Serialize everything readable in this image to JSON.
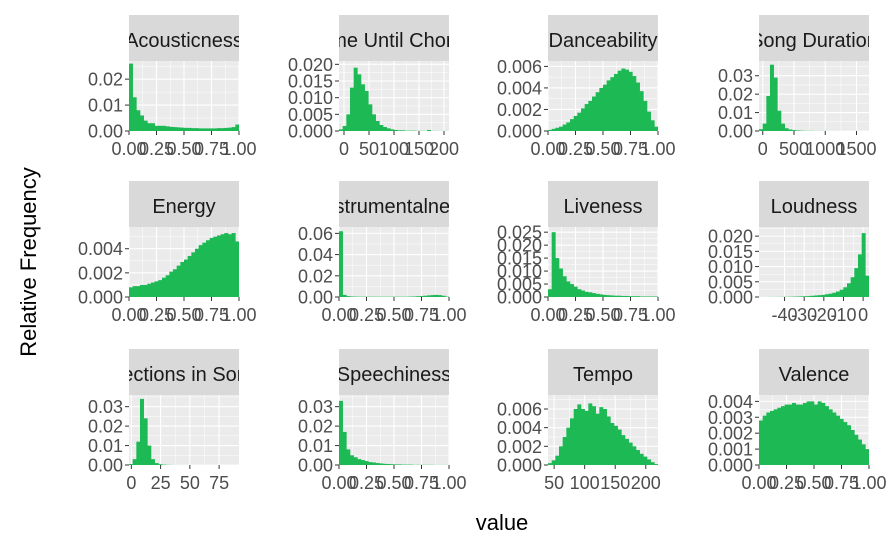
{
  "figure": {
    "ylabel": "Relative Frequency",
    "xlabel": "value",
    "bar_color": "#1DB954",
    "panel_bg": "#EBEBEB",
    "strip_bg": "#D9D9D9",
    "grid_color": "#FFFFFF",
    "text_color": "#4D4D4D"
  },
  "chart_data": [
    {
      "type": "bar",
      "title": "Acousticness",
      "xlim": [
        0,
        1
      ],
      "ylim": [
        0,
        0.027
      ],
      "xticks": [
        0.0,
        0.25,
        0.5,
        0.75,
        1.0
      ],
      "xtick_labels": [
        "0.00",
        "0.25",
        "0.50",
        "0.75",
        "1.00"
      ],
      "yticks": [
        0,
        0.01,
        0.02
      ],
      "ytick_labels": [
        "0.00",
        "0.01",
        "0.02"
      ],
      "values": [
        0.026,
        0.013,
        0.008,
        0.006,
        0.004,
        0.003,
        0.003,
        0.002,
        0.002,
        0.002,
        0.0018,
        0.0016,
        0.0015,
        0.0014,
        0.0013,
        0.0012,
        0.0012,
        0.0011,
        0.0011,
        0.001,
        0.001,
        0.001,
        0.001,
        0.001,
        0.0011,
        0.0011,
        0.0012,
        0.0013,
        0.0015,
        0.0025
      ]
    },
    {
      "type": "bar",
      "title": "Time Until Chorus",
      "xlim": [
        -10,
        210
      ],
      "ylim": [
        0,
        0.021
      ],
      "xticks": [
        0,
        50,
        100,
        150,
        200
      ],
      "xtick_labels": [
        "0",
        "50",
        "100",
        "150",
        "200"
      ],
      "yticks": [
        0,
        0.005,
        0.01,
        0.015,
        0.02
      ],
      "ytick_labels": [
        "0.000",
        "0.005",
        "0.010",
        "0.015",
        "0.020"
      ],
      "values": [
        0.0005,
        0.0015,
        0.005,
        0.013,
        0.019,
        0.017,
        0.014,
        0.012,
        0.008,
        0.005,
        0.003,
        0.0018,
        0.0012,
        0.0008,
        0.0005,
        0.0003,
        0.0002,
        0.0002,
        0.0001,
        0.0001,
        0.0001,
        5e-05,
        5e-05,
        5e-05,
        0.0003,
        5e-05,
        3e-05,
        3e-05,
        2e-05,
        2e-05
      ]
    },
    {
      "type": "bar",
      "title": "Danceability",
      "xlim": [
        0,
        1
      ],
      "ylim": [
        0,
        0.0065
      ],
      "xticks": [
        0.0,
        0.25,
        0.5,
        0.75,
        1.0
      ],
      "xtick_labels": [
        "0.00",
        "0.25",
        "0.50",
        "0.75",
        "1.00"
      ],
      "yticks": [
        0,
        0.002,
        0.004,
        0.006
      ],
      "ytick_labels": [
        "0.000",
        "0.002",
        "0.004",
        "0.006"
      ],
      "values": [
        0.0001,
        0.0002,
        0.0003,
        0.0004,
        0.0006,
        0.0008,
        0.0011,
        0.0014,
        0.0017,
        0.0021,
        0.0025,
        0.0028,
        0.0032,
        0.0036,
        0.004,
        0.0043,
        0.0047,
        0.005,
        0.0053,
        0.0056,
        0.0058,
        0.0057,
        0.0055,
        0.0051,
        0.0045,
        0.0037,
        0.0028,
        0.0018,
        0.001,
        0.0004
      ]
    },
    {
      "type": "bar",
      "title": "Song Duration",
      "xlim": [
        -60,
        1700
      ],
      "ylim": [
        0,
        0.038
      ],
      "xticks": [
        0,
        500,
        1000,
        1500
      ],
      "xtick_labels": [
        "0",
        "500",
        "1000",
        "1500"
      ],
      "yticks": [
        0,
        0.01,
        0.02,
        0.03
      ],
      "ytick_labels": [
        "0.00",
        "0.01",
        "0.02",
        "0.03"
      ],
      "values": [
        0.001,
        0.004,
        0.019,
        0.036,
        0.029,
        0.011,
        0.004,
        0.0015,
        0.0008,
        0.0005,
        0.0003,
        0.0002,
        0.0001,
        0.0001,
        0.0001,
        5e-05,
        5e-05,
        5e-05,
        3e-05,
        3e-05,
        2e-05,
        2e-05,
        2e-05,
        1e-05,
        1e-05,
        1e-05,
        1e-05,
        1e-05,
        1e-05,
        1e-05
      ]
    },
    {
      "type": "bar",
      "title": "Energy",
      "xlim": [
        0,
        1
      ],
      "ylim": [
        0,
        0.0058
      ],
      "xticks": [
        0.0,
        0.25,
        0.5,
        0.75,
        1.0
      ],
      "xtick_labels": [
        "0.00",
        "0.25",
        "0.50",
        "0.75",
        "1.00"
      ],
      "yticks": [
        0,
        0.002,
        0.004
      ],
      "ytick_labels": [
        "0.000",
        "0.002",
        "0.004"
      ],
      "values": [
        0.0008,
        0.0009,
        0.0009,
        0.001,
        0.001,
        0.0011,
        0.0012,
        0.0013,
        0.0014,
        0.0016,
        0.0018,
        0.0021,
        0.0023,
        0.0026,
        0.0029,
        0.0031,
        0.0034,
        0.0037,
        0.004,
        0.0043,
        0.0045,
        0.0047,
        0.0049,
        0.005,
        0.0051,
        0.0052,
        0.0053,
        0.0052,
        0.0053,
        0.0046
      ]
    },
    {
      "type": "bar",
      "title": "Instrumentalness",
      "xlim": [
        0,
        1
      ],
      "ylim": [
        0,
        0.066
      ],
      "xticks": [
        0.0,
        0.25,
        0.5,
        0.75,
        1.0
      ],
      "xtick_labels": [
        "0.00",
        "0.25",
        "0.50",
        "0.75",
        "1.00"
      ],
      "yticks": [
        0,
        0.02,
        0.04,
        0.06
      ],
      "ytick_labels": [
        "0.00",
        "0.02",
        "0.04",
        "0.06"
      ],
      "values": [
        0.062,
        0.002,
        0.0008,
        0.0005,
        0.0004,
        0.0003,
        0.0003,
        0.0003,
        0.0003,
        0.0003,
        0.0003,
        0.0003,
        0.0003,
        0.0003,
        0.0003,
        0.0003,
        0.0003,
        0.0003,
        0.0003,
        0.0004,
        0.0005,
        0.0007,
        0.0009,
        0.0012,
        0.0015,
        0.0018,
        0.002,
        0.0018,
        0.0012,
        0.0004
      ]
    },
    {
      "type": "bar",
      "title": "Liveness",
      "xlim": [
        0,
        1
      ],
      "ylim": [
        0,
        0.027
      ],
      "xticks": [
        0.0,
        0.25,
        0.5,
        0.75,
        1.0
      ],
      "xtick_labels": [
        "0.00",
        "0.25",
        "0.50",
        "0.75",
        "1.00"
      ],
      "yticks": [
        0,
        0.005,
        0.01,
        0.015,
        0.02,
        0.025
      ],
      "ytick_labels": [
        "0.000",
        "0.005",
        "0.010",
        "0.015",
        "0.020",
        "0.025"
      ],
      "values": [
        0.003,
        0.025,
        0.015,
        0.011,
        0.008,
        0.006,
        0.005,
        0.004,
        0.003,
        0.0025,
        0.002,
        0.0018,
        0.0015,
        0.0012,
        0.001,
        0.0008,
        0.0007,
        0.0006,
        0.0005,
        0.0005,
        0.0004,
        0.0004,
        0.0003,
        0.0003,
        0.0003,
        0.0002,
        0.0002,
        0.0002,
        0.0002,
        0.0002
      ]
    },
    {
      "type": "bar",
      "title": "Loudness",
      "xlim": [
        -53,
        3
      ],
      "ylim": [
        0,
        0.023
      ],
      "xticks": [
        -40,
        -30,
        -20,
        -10,
        0
      ],
      "xtick_labels": [
        "-40",
        "-30",
        "-20",
        "-10",
        "0"
      ],
      "yticks": [
        0,
        0.005,
        0.01,
        0.015,
        0.02
      ],
      "ytick_labels": [
        "0.000",
        "0.005",
        "0.010",
        "0.015",
        "0.020"
      ],
      "values": [
        2e-05,
        2e-05,
        3e-05,
        3e-05,
        4e-05,
        5e-05,
        6e-05,
        8e-05,
        0.0001,
        0.00012,
        0.00015,
        0.0002,
        0.00025,
        0.0003,
        0.0004,
        0.0005,
        0.0006,
        0.0007,
        0.0009,
        0.0011,
        0.0014,
        0.0018,
        0.0024,
        0.0032,
        0.0045,
        0.0065,
        0.0095,
        0.014,
        0.021,
        0.007
      ]
    },
    {
      "type": "bar",
      "title": "Sections in Song",
      "xlim": [
        -2,
        92
      ],
      "ylim": [
        0,
        0.036
      ],
      "xticks": [
        0,
        25,
        50,
        75
      ],
      "xtick_labels": [
        "0",
        "25",
        "50",
        "75"
      ],
      "yticks": [
        0,
        0.01,
        0.02,
        0.03
      ],
      "ytick_labels": [
        "0.00",
        "0.01",
        "0.02",
        "0.03"
      ],
      "values": [
        0.0005,
        0.003,
        0.012,
        0.034,
        0.024,
        0.01,
        0.003,
        0.001,
        0.0004,
        0.0002,
        0.0001,
        5e-05,
        4e-05,
        3e-05,
        2e-05,
        2e-05,
        1e-05,
        1e-05,
        1e-05,
        1e-05,
        1e-05,
        1e-05,
        1e-05,
        1e-05,
        1e-05,
        1e-05,
        1e-05,
        1e-05,
        1e-05,
        1e-05
      ]
    },
    {
      "type": "bar",
      "title": "Speechiness",
      "xlim": [
        0,
        1
      ],
      "ylim": [
        0,
        0.036
      ],
      "xticks": [
        0.0,
        0.25,
        0.5,
        0.75,
        1.0
      ],
      "xtick_labels": [
        "0.00",
        "0.25",
        "0.50",
        "0.75",
        "1.00"
      ],
      "yticks": [
        0,
        0.01,
        0.02,
        0.03
      ],
      "ytick_labels": [
        "0.00",
        "0.01",
        "0.02",
        "0.03"
      ],
      "values": [
        0.033,
        0.017,
        0.008,
        0.005,
        0.004,
        0.003,
        0.0025,
        0.002,
        0.0015,
        0.0013,
        0.001,
        0.0008,
        0.0006,
        0.0005,
        0.0004,
        0.0003,
        0.0003,
        0.0002,
        0.0002,
        0.0002,
        0.0001,
        0.0001,
        0.0001,
        0.0001,
        0.0001,
        0.0001,
        5e-05,
        5e-05,
        5e-05,
        5e-05
      ]
    },
    {
      "type": "bar",
      "title": "Tempo",
      "xlim": [
        40,
        220
      ],
      "ylim": [
        0,
        0.0075
      ],
      "xticks": [
        50,
        100,
        150,
        200
      ],
      "xtick_labels": [
        "50",
        "100",
        "150",
        "200"
      ],
      "yticks": [
        0,
        0.002,
        0.004,
        0.006
      ],
      "ytick_labels": [
        "0.000",
        "0.002",
        "0.004",
        "0.006"
      ],
      "values": [
        0.0002,
        0.0005,
        0.001,
        0.002,
        0.003,
        0.004,
        0.005,
        0.006,
        0.0065,
        0.006,
        0.0058,
        0.0066,
        0.0063,
        0.0055,
        0.0062,
        0.006,
        0.0052,
        0.0045,
        0.0042,
        0.0038,
        0.0032,
        0.0028,
        0.0024,
        0.002,
        0.0016,
        0.0012,
        0.0009,
        0.0006,
        0.0003,
        0.0001
      ]
    },
    {
      "type": "bar",
      "title": "Valence",
      "xlim": [
        0,
        1
      ],
      "ylim": [
        0,
        0.0044
      ],
      "xticks": [
        0.0,
        0.25,
        0.5,
        0.75,
        1.0
      ],
      "xtick_labels": [
        "0.00",
        "0.25",
        "0.50",
        "0.75",
        "1.00"
      ],
      "yticks": [
        0,
        0.001,
        0.002,
        0.003,
        0.004
      ],
      "ytick_labels": [
        "0.000",
        "0.001",
        "0.002",
        "0.003",
        "0.004"
      ],
      "values": [
        0.0028,
        0.0031,
        0.0033,
        0.0034,
        0.0035,
        0.0036,
        0.0037,
        0.0038,
        0.0038,
        0.0039,
        0.0038,
        0.0038,
        0.0039,
        0.004,
        0.004,
        0.0038,
        0.004,
        0.0039,
        0.0037,
        0.0035,
        0.0033,
        0.0031,
        0.0029,
        0.0027,
        0.0025,
        0.0022,
        0.0019,
        0.0016,
        0.0013,
        0.001
      ]
    }
  ]
}
